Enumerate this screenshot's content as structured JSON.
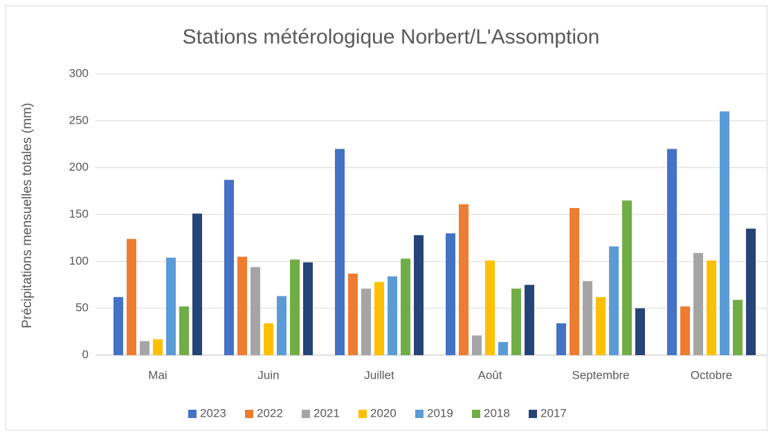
{
  "chart_data": {
    "type": "bar",
    "title": "Stations métérologique Norbert/L'Assomption",
    "y_label": "Précipitations mensuelles totales (mm)",
    "categories": [
      "Mai",
      "Juin",
      "Juillet",
      "Août",
      "Septembre",
      "Octobre"
    ],
    "series": [
      {
        "name": "2023",
        "color": "#4472c4",
        "values": [
          62,
          187,
          220,
          130,
          34,
          220
        ]
      },
      {
        "name": "2022",
        "color": "#ed7d31",
        "values": [
          124,
          105,
          87,
          161,
          157,
          52
        ]
      },
      {
        "name": "2021",
        "color": "#a5a5a5",
        "values": [
          15,
          94,
          71,
          21,
          79,
          109
        ]
      },
      {
        "name": "2020",
        "color": "#ffc000",
        "values": [
          17,
          34,
          78,
          101,
          62,
          101
        ]
      },
      {
        "name": "2019",
        "color": "#5b9bd5",
        "values": [
          104,
          63,
          84,
          14,
          116,
          260
        ]
      },
      {
        "name": "2018",
        "color": "#70ad47",
        "values": [
          52,
          102,
          103,
          71,
          165,
          59
        ]
      },
      {
        "name": "2017",
        "color": "#264478",
        "values": [
          151,
          99,
          128,
          75,
          50,
          135
        ]
      }
    ],
    "ylim": [
      0,
      300
    ],
    "yticks": [
      0,
      50,
      100,
      150,
      200,
      250,
      300
    ],
    "grid": true,
    "legend": "bottom"
  }
}
